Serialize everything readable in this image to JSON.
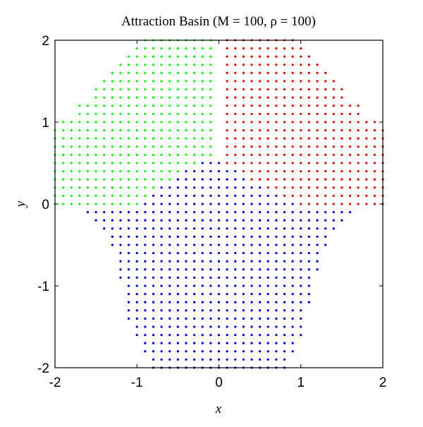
{
  "chart_data": {
    "type": "scatter",
    "title": "Attraction Basin (M = 100, ρ = 100)",
    "x_label": "x",
    "y_label": "y",
    "xlim": [
      -2,
      2
    ],
    "ylim": [
      -2,
      2
    ],
    "xticks": [
      -2,
      -1,
      0,
      1,
      2
    ],
    "yticks": [
      -2,
      -1,
      0,
      1,
      2
    ],
    "series": [
      {
        "color": "#00ff00",
        "rows": [
          [
            2.0,
            -0.9,
            -0.1
          ],
          [
            1.9,
            -1.0,
            -0.1
          ],
          [
            1.8,
            -1.1,
            -0.1
          ],
          [
            1.7,
            -1.2,
            -0.1
          ],
          [
            1.6,
            -1.3,
            -0.1
          ],
          [
            1.5,
            -1.4,
            -0.1
          ],
          [
            1.4,
            -1.5,
            -0.1
          ],
          [
            1.3,
            -1.5,
            -0.1
          ],
          [
            1.2,
            -1.7,
            -0.1
          ],
          [
            1.1,
            -1.7,
            -0.1
          ],
          [
            1.0,
            -1.9,
            -0.1
          ],
          [
            0.9,
            -2.0,
            -0.1
          ],
          [
            0.8,
            -2.0,
            -0.1
          ],
          [
            0.7,
            -2.0,
            -0.1
          ],
          [
            0.6,
            -2.0,
            -0.1
          ],
          [
            0.5,
            -2.0,
            -0.3
          ],
          [
            0.4,
            -2.0,
            -0.5
          ],
          [
            0.3,
            -2.0,
            -0.6
          ],
          [
            0.2,
            -2.0,
            -0.8
          ],
          [
            0.1,
            -2.0,
            -0.9
          ],
          [
            0.0,
            -2.0,
            -1.0
          ]
        ]
      },
      {
        "color": "#ff0000",
        "rows": [
          [
            2.0,
            0.1,
            0.9
          ],
          [
            1.9,
            0.1,
            1.0
          ],
          [
            1.8,
            0.1,
            1.1
          ],
          [
            1.7,
            0.1,
            1.2
          ],
          [
            1.6,
            0.1,
            1.3
          ],
          [
            1.5,
            0.1,
            1.4
          ],
          [
            1.4,
            0.1,
            1.5
          ],
          [
            1.3,
            0.1,
            1.5
          ],
          [
            1.2,
            0.1,
            1.7
          ],
          [
            1.1,
            0.1,
            1.7
          ],
          [
            1.0,
            0.1,
            1.9
          ],
          [
            0.9,
            0.1,
            2.0
          ],
          [
            0.8,
            0.1,
            2.0
          ],
          [
            0.7,
            0.1,
            2.0
          ],
          [
            0.6,
            0.1,
            2.0
          ],
          [
            0.5,
            0.1,
            2.0
          ],
          [
            0.4,
            0.3,
            2.0
          ],
          [
            0.3,
            0.4,
            2.0
          ],
          [
            0.2,
            0.6,
            2.0
          ],
          [
            0.1,
            0.8,
            2.0
          ],
          [
            0.0,
            1.0,
            2.0
          ]
        ]
      },
      {
        "color": "#0000ff",
        "rows": [
          [
            0.5,
            -0.2,
            0.0
          ],
          [
            0.4,
            -0.4,
            0.2
          ],
          [
            0.3,
            -0.5,
            0.3
          ],
          [
            0.2,
            -0.7,
            0.5
          ],
          [
            0.1,
            -0.8,
            0.7
          ],
          [
            0.0,
            -0.9,
            0.9
          ],
          [
            -0.1,
            -1.6,
            1.6
          ],
          [
            -0.2,
            -1.5,
            1.5
          ],
          [
            -0.3,
            -1.4,
            1.4
          ],
          [
            -0.4,
            -1.3,
            1.3
          ],
          [
            -0.5,
            -1.3,
            1.3
          ],
          [
            -0.6,
            -1.2,
            1.2
          ],
          [
            -0.7,
            -1.2,
            1.2
          ],
          [
            -0.8,
            -1.2,
            1.2
          ],
          [
            -0.9,
            -1.2,
            1.1
          ],
          [
            -1.0,
            -1.1,
            1.1
          ],
          [
            -1.1,
            -1.1,
            1.1
          ],
          [
            -1.2,
            -1.1,
            1.1
          ],
          [
            -1.3,
            -1.1,
            1.0
          ],
          [
            -1.4,
            -1.1,
            1.0
          ],
          [
            -1.5,
            -1.0,
            1.0
          ],
          [
            -1.6,
            -1.0,
            1.0
          ],
          [
            -1.7,
            -0.9,
            0.9
          ],
          [
            -1.8,
            -0.9,
            0.9
          ],
          [
            -1.9,
            -0.8,
            0.8
          ],
          [
            -2.0,
            -0.8,
            0.8
          ]
        ]
      }
    ]
  }
}
